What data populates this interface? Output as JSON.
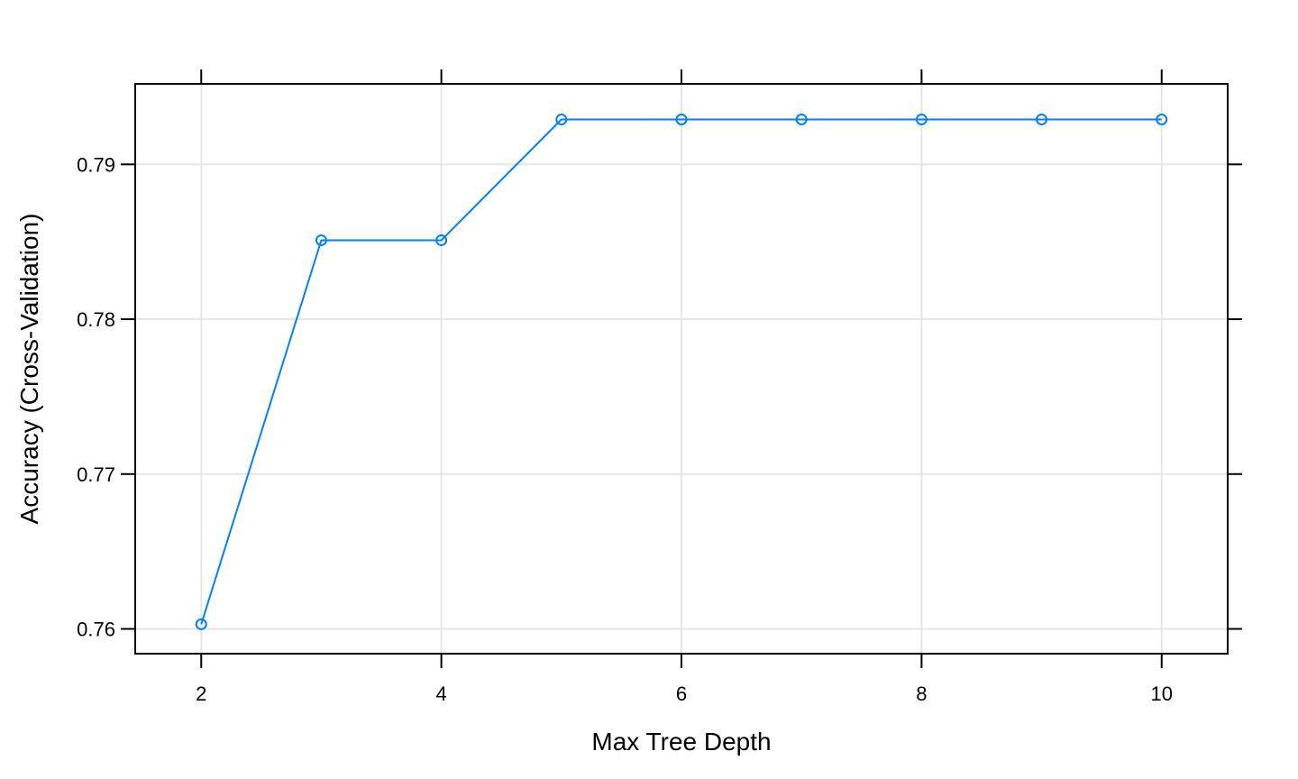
{
  "chart_data": {
    "type": "line",
    "xlabel": "Max Tree Depth",
    "ylabel": "Accuracy (Cross-Validation)",
    "x": [
      2,
      3,
      4,
      5,
      6,
      7,
      8,
      9,
      10
    ],
    "series": [
      {
        "values": [
          0.7603,
          0.7851,
          0.7851,
          0.7929,
          0.7929,
          0.7929,
          0.7929,
          0.7929,
          0.7929
        ]
      }
    ],
    "xticks": [
      2,
      4,
      6,
      8,
      10
    ],
    "xtick_labels": [
      "2",
      "4",
      "6",
      "8",
      "10"
    ],
    "yticks": [
      0.76,
      0.77,
      0.78,
      0.79
    ],
    "ytick_labels": [
      "0.76",
      "0.77",
      "0.78",
      "0.79"
    ],
    "xlim": [
      1.45,
      10.55
    ],
    "ylim": [
      0.7584,
      0.7952
    ],
    "grid": true,
    "colors": {
      "line": "#0080ff",
      "grid": "#e6e6e6",
      "frame": "#000000"
    }
  }
}
